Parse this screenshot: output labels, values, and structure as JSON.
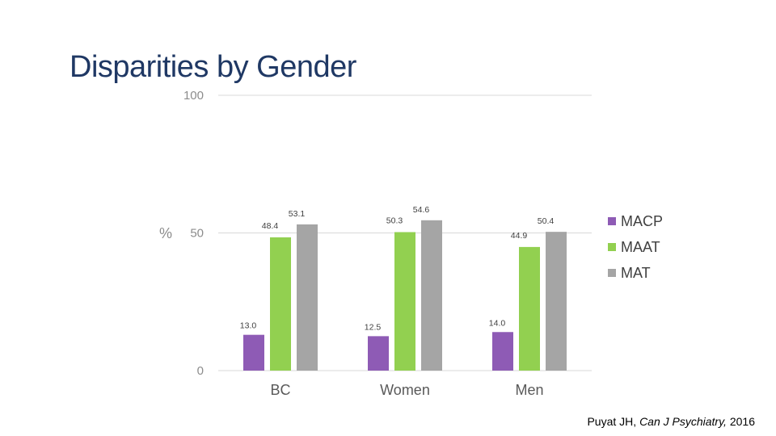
{
  "slide": {
    "title": "Disparities by Gender",
    "citation": {
      "authors": "Puyat JH, ",
      "journal": "Can J Psychiatry,",
      "year": " 2016"
    }
  },
  "chart_data": {
    "type": "bar",
    "title": "",
    "ylabel": "%",
    "xlabel": "",
    "ylim": [
      0,
      100
    ],
    "yticks": [
      0,
      50,
      100
    ],
    "grid": true,
    "legend_position": "right",
    "categories": [
      "BC",
      "Women",
      "Men"
    ],
    "series": [
      {
        "name": "MACP",
        "color": "#8e5bb5",
        "values": [
          13.0,
          12.5,
          14.0
        ],
        "labels": [
          "13.0",
          "12.5",
          "14.0"
        ]
      },
      {
        "name": "MAAT",
        "color": "#92d050",
        "values": [
          48.4,
          50.3,
          44.9
        ],
        "labels": [
          "48.4",
          "50.3",
          "44.9"
        ]
      },
      {
        "name": "MAT",
        "color": "#a5a5a5",
        "values": [
          53.1,
          54.6,
          50.4
        ],
        "labels": [
          "53.1",
          "54.6",
          "50.4"
        ]
      }
    ]
  }
}
